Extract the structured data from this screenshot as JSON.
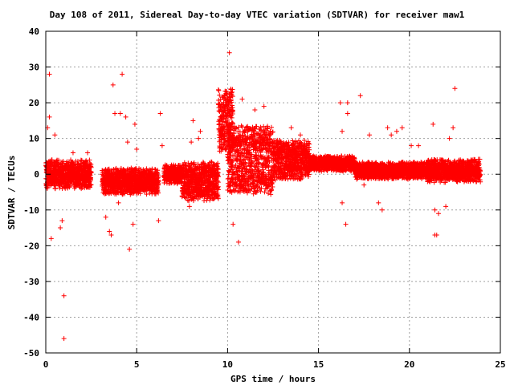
{
  "chart_data": {
    "type": "scatter",
    "title": "Day 108 of 2011, Sidereal Day-to-day VTEC variation (SDTVAR) for receiver maw1",
    "xlabel": "GPS time / hours",
    "ylabel": "SDTVAR / TECUs",
    "xlim": [
      0,
      25
    ],
    "ylim": [
      -50,
      40
    ],
    "xticks": [
      0,
      5,
      10,
      15,
      20,
      25
    ],
    "yticks": [
      -50,
      -40,
      -30,
      -20,
      -10,
      0,
      10,
      20,
      30,
      40
    ],
    "grid": true,
    "marker": "+",
    "color": "#ff0000",
    "outliers": [
      [
        0.2,
        28
      ],
      [
        0.1,
        13
      ],
      [
        0.2,
        16
      ],
      [
        0.3,
        -18
      ],
      [
        0.5,
        11
      ],
      [
        0.8,
        -15
      ],
      [
        0.9,
        -13
      ],
      [
        1.0,
        -34
      ],
      [
        1.0,
        -46
      ],
      [
        1.5,
        6
      ],
      [
        2.3,
        6
      ],
      [
        3.3,
        -12
      ],
      [
        3.5,
        -16
      ],
      [
        3.6,
        -17
      ],
      [
        3.7,
        25
      ],
      [
        3.8,
        17
      ],
      [
        4.0,
        -8
      ],
      [
        4.1,
        17
      ],
      [
        4.2,
        28
      ],
      [
        4.4,
        16
      ],
      [
        4.5,
        9
      ],
      [
        4.6,
        -21
      ],
      [
        4.8,
        -14
      ],
      [
        4.9,
        14
      ],
      [
        5.0,
        7
      ],
      [
        6.2,
        -13
      ],
      [
        6.3,
        17
      ],
      [
        6.4,
        8
      ],
      [
        7.9,
        -9
      ],
      [
        8.0,
        9
      ],
      [
        8.1,
        15
      ],
      [
        8.3,
        -5
      ],
      [
        8.4,
        10
      ],
      [
        8.5,
        12
      ],
      [
        10.0,
        5
      ],
      [
        10.3,
        -14
      ],
      [
        10.6,
        -19
      ],
      [
        10.8,
        21
      ],
      [
        10.1,
        34
      ],
      [
        11.5,
        18
      ],
      [
        12.0,
        19
      ],
      [
        13.5,
        13
      ],
      [
        14.0,
        11
      ],
      [
        16.2,
        20
      ],
      [
        16.3,
        -8
      ],
      [
        16.5,
        -14
      ],
      [
        16.6,
        17
      ],
      [
        16.6,
        20
      ],
      [
        16.3,
        12
      ],
      [
        17.3,
        22
      ],
      [
        17.5,
        -3
      ],
      [
        17.8,
        11
      ],
      [
        18.3,
        -8
      ],
      [
        18.5,
        -10
      ],
      [
        18.8,
        13
      ],
      [
        19.0,
        11
      ],
      [
        19.3,
        12
      ],
      [
        19.6,
        13
      ],
      [
        20.1,
        8
      ],
      [
        20.5,
        8
      ],
      [
        21.3,
        14
      ],
      [
        21.4,
        -17
      ],
      [
        21.5,
        -17
      ],
      [
        21.6,
        -11
      ],
      [
        21.4,
        -10
      ],
      [
        22.0,
        -9
      ],
      [
        22.2,
        10
      ],
      [
        22.4,
        13
      ],
      [
        22.5,
        24
      ]
    ],
    "segments": [
      {
        "x": [
          0.0,
          2.5
        ],
        "center": 0,
        "amp": 3.5,
        "spread": 4
      },
      {
        "x": [
          3.1,
          6.2
        ],
        "center": -2,
        "amp": 3,
        "spread": 4
      },
      {
        "x": [
          6.5,
          7.5
        ],
        "center": 0,
        "amp": 2,
        "spread": 3
      },
      {
        "x": [
          7.5,
          9.5
        ],
        "center": -2,
        "amp": 6,
        "spread": 4
      },
      {
        "x": [
          9.5,
          10.3
        ],
        "center": 15,
        "amp": 10,
        "spread": 6
      },
      {
        "x": [
          10.0,
          12.5
        ],
        "center": 4,
        "amp": 12,
        "spread": 5
      },
      {
        "x": [
          12.5,
          14.5
        ],
        "center": 4,
        "amp": 6,
        "spread": 4
      },
      {
        "x": [
          14.5,
          17.0
        ],
        "center": 3,
        "amp": 2,
        "spread": 2
      },
      {
        "x": [
          17.0,
          21.0
        ],
        "center": 1,
        "amp": 2,
        "spread": 2.5
      },
      {
        "x": [
          21.0,
          23.9
        ],
        "center": 1,
        "amp": 3,
        "spread": 3
      }
    ]
  }
}
